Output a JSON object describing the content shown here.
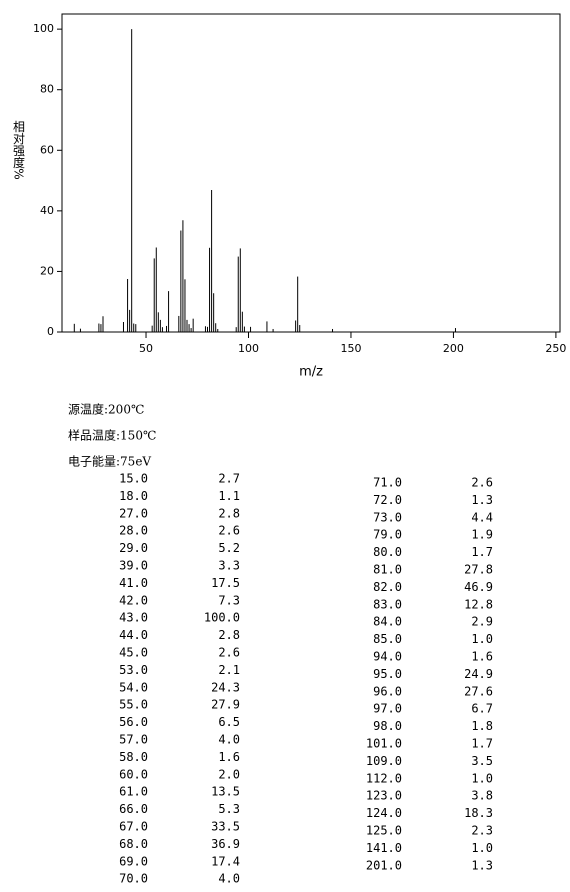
{
  "chart_data": {
    "type": "bar",
    "xlabel": "m/z",
    "ylabel": "相对强度%",
    "x": [
      15,
      18,
      27,
      28,
      29,
      39,
      41,
      42,
      43,
      44,
      45,
      53,
      54,
      55,
      56,
      57,
      58,
      60,
      61,
      66,
      67,
      68,
      69,
      70,
      71,
      72,
      73,
      79,
      80,
      81,
      82,
      83,
      84,
      85,
      94,
      95,
      96,
      97,
      98,
      101,
      109,
      112,
      123,
      124,
      125,
      141,
      201
    ],
    "x_labels": [
      "15.0",
      "18.0",
      "27.0",
      "28.0",
      "29.0",
      "39.0",
      "41.0",
      "42.0",
      "43.0",
      "44.0",
      "45.0",
      "53.0",
      "54.0",
      "55.0",
      "56.0",
      "57.0",
      "58.0",
      "60.0",
      "61.0",
      "66.0",
      "67.0",
      "68.0",
      "69.0",
      "70.0",
      "71.0",
      "72.0",
      "73.0",
      "79.0",
      "80.0",
      "81.0",
      "82.0",
      "83.0",
      "84.0",
      "85.0",
      "94.0",
      "95.0",
      "96.0",
      "97.0",
      "98.0",
      "101.0",
      "109.0",
      "112.0",
      "123.0",
      "124.0",
      "125.0",
      "141.0",
      "201.0"
    ],
    "values": [
      2.7,
      1.1,
      2.8,
      2.6,
      5.2,
      3.3,
      17.5,
      7.3,
      100,
      2.8,
      2.6,
      2.1,
      24.3,
      27.9,
      6.5,
      4,
      1.6,
      2,
      13.5,
      5.3,
      33.5,
      36.9,
      17.4,
      4,
      2.6,
      1.3,
      4.4,
      1.9,
      1.7,
      27.8,
      46.9,
      12.8,
      2.9,
      1,
      1.6,
      24.9,
      27.6,
      6.7,
      1.8,
      1.7,
      3.5,
      1,
      3.8,
      18.3,
      2.3,
      1,
      1.3
    ],
    "value_labels": [
      "2.7",
      "1.1",
      "2.8",
      "2.6",
      "5.2",
      "3.3",
      "17.5",
      "7.3",
      "100.0",
      "2.8",
      "2.6",
      "2.1",
      "24.3",
      "27.9",
      "6.5",
      "4.0",
      "1.6",
      "2.0",
      "13.5",
      "5.3",
      "33.5",
      "36.9",
      "17.4",
      "4.0",
      "2.6",
      "1.3",
      "4.4",
      "1.9",
      "1.7",
      "27.8",
      "46.9",
      "12.8",
      "2.9",
      "1.0",
      "1.6",
      "24.9",
      "27.6",
      "6.7",
      "1.8",
      "1.7",
      "3.5",
      "1.0",
      "3.8",
      "18.3",
      "2.3",
      "1.0",
      "1.3"
    ],
    "color": "#000000",
    "xlim": [
      9,
      252
    ],
    "xticks": [
      50,
      100,
      150,
      200,
      250
    ],
    "ylim": [
      0,
      105
    ],
    "yticks": [
      0,
      20,
      40,
      60,
      80,
      100
    ]
  },
  "conditions": [
    "源温度:200℃",
    "样品温度:150℃",
    "电子能量:75eV"
  ]
}
